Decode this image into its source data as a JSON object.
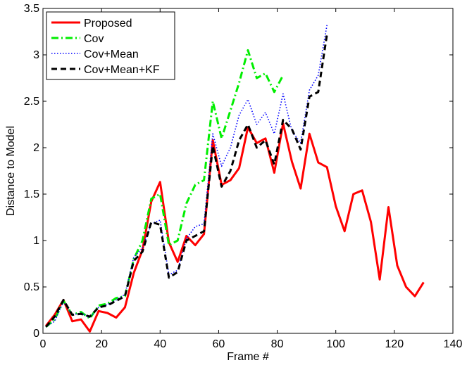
{
  "chart_data": {
    "type": "line",
    "title": "",
    "xlabel": "Frame #",
    "ylabel": "Distance to Model",
    "xlim": [
      0,
      140
    ],
    "ylim": [
      0,
      3.5
    ],
    "xticks": [
      0,
      20,
      40,
      60,
      80,
      100,
      120,
      140
    ],
    "yticks": [
      0,
      0.5,
      1,
      1.5,
      2,
      2.5,
      3,
      3.5
    ],
    "grid": false,
    "legend_position": "top-left",
    "series": [
      {
        "name": "Proposed",
        "color": "#ff0000",
        "style": "solid",
        "x": [
          1,
          4,
          7,
          10,
          13,
          16,
          19,
          22,
          25,
          28,
          31,
          34,
          37,
          40,
          43,
          46,
          49,
          52,
          55,
          58,
          61,
          64,
          67,
          70,
          73,
          76,
          79,
          82,
          85,
          88,
          91,
          94,
          97,
          100,
          103,
          106,
          109,
          112,
          115,
          118,
          121,
          124,
          127,
          130
        ],
        "y": [
          0.08,
          0.2,
          0.36,
          0.13,
          0.15,
          0.02,
          0.24,
          0.22,
          0.17,
          0.28,
          0.65,
          0.9,
          1.42,
          1.63,
          0.98,
          0.77,
          1.05,
          0.95,
          1.07,
          2.08,
          1.6,
          1.65,
          1.78,
          2.22,
          2.05,
          2.1,
          1.73,
          2.26,
          1.85,
          1.56,
          2.15,
          1.84,
          1.79,
          1.37,
          1.1,
          1.5,
          1.54,
          1.2,
          0.58,
          1.36,
          0.73,
          0.5,
          0.4,
          0.55
        ]
      },
      {
        "name": "Cov",
        "color": "#00ee00",
        "style": "dashdot",
        "x": [
          1,
          4,
          7,
          10,
          13,
          16,
          19,
          22,
          25,
          28,
          31,
          34,
          37,
          40,
          43,
          46,
          49,
          52,
          55,
          58,
          61,
          64,
          67,
          70,
          73,
          76,
          79,
          82
        ],
        "y": [
          0.07,
          0.15,
          0.35,
          0.2,
          0.23,
          0.16,
          0.3,
          0.32,
          0.38,
          0.4,
          0.8,
          1.0,
          1.45,
          1.5,
          0.95,
          1.0,
          1.4,
          1.6,
          1.65,
          2.5,
          2.1,
          2.4,
          2.7,
          3.05,
          2.75,
          2.8,
          2.6,
          2.78
        ]
      },
      {
        "name": "Cov+Mean",
        "color": "#0000ff",
        "style": "dotted",
        "x": [
          1,
          4,
          7,
          10,
          13,
          16,
          19,
          22,
          25,
          28,
          31,
          34,
          37,
          40,
          43,
          46,
          49,
          52,
          55,
          58,
          61,
          64,
          67,
          70,
          73,
          76,
          79,
          82,
          85,
          88,
          91,
          94,
          97
        ],
        "y": [
          0.07,
          0.13,
          0.34,
          0.2,
          0.22,
          0.17,
          0.28,
          0.31,
          0.36,
          0.42,
          0.82,
          0.92,
          1.18,
          1.22,
          0.63,
          0.68,
          1.02,
          1.15,
          1.18,
          2.15,
          1.8,
          2.0,
          2.35,
          2.52,
          2.25,
          2.38,
          2.15,
          2.58,
          2.18,
          2.05,
          2.62,
          2.78,
          3.32
        ]
      },
      {
        "name": "Cov+Mean+KF",
        "color": "#000000",
        "style": "dashed",
        "x": [
          1,
          4,
          7,
          10,
          13,
          16,
          19,
          22,
          25,
          28,
          31,
          34,
          37,
          40,
          43,
          46,
          49,
          52,
          55,
          58,
          61,
          64,
          67,
          70,
          73,
          76,
          79,
          82,
          85,
          88,
          91,
          94,
          97
        ],
        "y": [
          0.07,
          0.18,
          0.36,
          0.2,
          0.21,
          0.18,
          0.28,
          0.3,
          0.35,
          0.4,
          0.78,
          0.88,
          1.2,
          1.17,
          0.6,
          0.66,
          1.0,
          1.05,
          1.1,
          2.02,
          1.58,
          1.75,
          2.08,
          2.25,
          2.0,
          2.08,
          1.82,
          2.3,
          2.2,
          1.98,
          2.55,
          2.6,
          3.22
        ]
      }
    ]
  }
}
